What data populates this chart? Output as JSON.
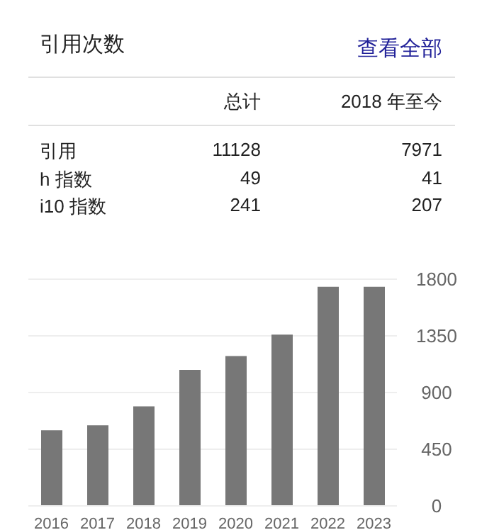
{
  "chart_data": [
    {
      "type": "other",
      "title": "引用次数",
      "annotations": [
        "查看全部",
        "11128",
        "7971",
        "49",
        "41",
        "241",
        "207"
      ],
      "categories": [
        "总计",
        "2018 年至今"
      ],
      "y_categories": [
        "引用",
        "h 指数",
        "i10 指数"
      ]
    },
    {
      "type": "bar",
      "categories": [
        "2016",
        "2017",
        "2018",
        "2019",
        "2020",
        "2021",
        "2022",
        "2023"
      ],
      "values": [
        600,
        640,
        790,
        1080,
        1190,
        1360,
        1740,
        1740
      ],
      "color": "#777777",
      "ylim": [
        0,
        1800
      ],
      "yticks": [
        0,
        450,
        900,
        1350,
        1800
      ],
      "grid": "y"
    }
  ]
}
